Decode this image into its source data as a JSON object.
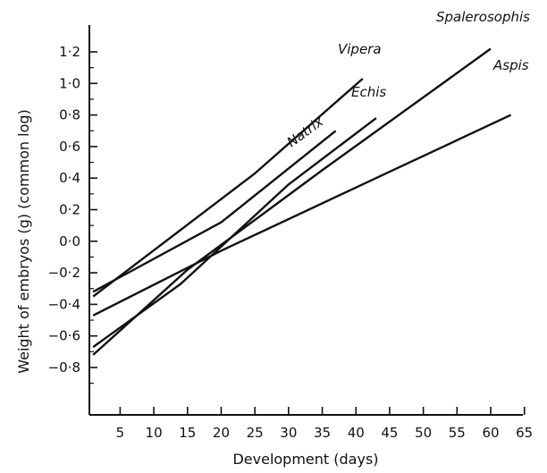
{
  "chart_data": {
    "type": "line",
    "xlabel": "Development (days)",
    "ylabel": "Weight of embryos (g) (common log)",
    "xlim": [
      0,
      65
    ],
    "ylim": [
      -1.05,
      1.25
    ],
    "x_ticks": [
      5,
      10,
      15,
      20,
      25,
      30,
      35,
      40,
      45,
      50,
      55,
      60,
      65
    ],
    "x_tick_labels": [
      "5",
      "10",
      "15",
      "20",
      "25",
      "30",
      "35",
      "40",
      "45",
      "50",
      "55",
      "60",
      "65"
    ],
    "y_ticks": [
      1.2,
      1.0,
      0.8,
      0.6,
      0.4,
      0.2,
      0.0,
      -0.2,
      -0.4,
      -0.6,
      -0.8
    ],
    "y_tick_labels": [
      "1·2",
      "1·0",
      "0·8",
      "0·6",
      "0·4",
      "0·2",
      "0·0",
      "−0·2",
      "−0·4",
      "−0·6",
      "−0·8"
    ],
    "grid": false,
    "series": [
      {
        "name": "Vipera",
        "points": [
          [
            1,
            -0.35
          ],
          [
            25,
            0.43
          ],
          [
            41,
            1.03
          ]
        ]
      },
      {
        "name": "Natrix",
        "points": [
          [
            1,
            -0.32
          ],
          [
            20,
            0.12
          ],
          [
            37,
            0.7
          ]
        ]
      },
      {
        "name": "Echis",
        "points": [
          [
            1,
            -0.67
          ],
          [
            14,
            -0.27
          ],
          [
            30,
            0.36
          ],
          [
            43,
            0.78
          ]
        ]
      },
      {
        "name": "Spalerosophis",
        "points": [
          [
            1,
            -0.72
          ],
          [
            15,
            -0.18
          ],
          [
            35,
            0.45
          ],
          [
            60,
            1.22
          ]
        ]
      },
      {
        "name": "Aspis",
        "points": [
          [
            1,
            -0.47
          ],
          [
            20,
            -0.06
          ],
          [
            45,
            0.44
          ],
          [
            63,
            0.8
          ]
        ]
      }
    ]
  }
}
